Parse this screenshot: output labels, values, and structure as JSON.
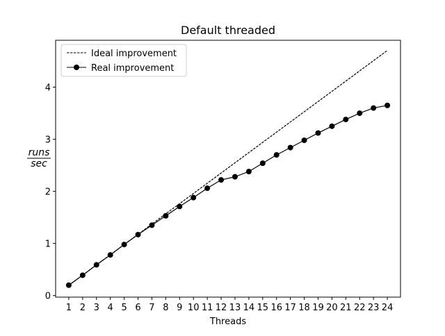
{
  "chart_data": {
    "type": "line",
    "title": "Default threaded",
    "xlabel": "Threads",
    "ylabel": {
      "numerator": "runs",
      "denominator": "sec"
    },
    "x": [
      1,
      2,
      3,
      4,
      5,
      6,
      7,
      8,
      9,
      10,
      11,
      12,
      13,
      14,
      15,
      16,
      17,
      18,
      19,
      20,
      21,
      22,
      23,
      24
    ],
    "xlim": [
      0.05,
      24.95
    ],
    "ylim": [
      -0.03,
      4.9
    ],
    "yticks": [
      0,
      1,
      2,
      3,
      4
    ],
    "grid": false,
    "legend_position": "upper-left",
    "series": [
      {
        "name": "Ideal improvement",
        "style": "dashed",
        "color": "#000000",
        "values": [
          0.196,
          0.392,
          0.588,
          0.784,
          0.98,
          1.176,
          1.372,
          1.568,
          1.764,
          1.96,
          2.156,
          2.352,
          2.548,
          2.744,
          2.94,
          3.136,
          3.332,
          3.528,
          3.724,
          3.92,
          4.116,
          4.312,
          4.508,
          4.704
        ]
      },
      {
        "name": "Real improvement",
        "style": "solid-marker",
        "color": "#000000",
        "values": [
          0.2,
          0.39,
          0.59,
          0.78,
          0.98,
          1.17,
          1.35,
          1.53,
          1.71,
          1.88,
          2.06,
          2.22,
          2.28,
          2.38,
          2.54,
          2.7,
          2.84,
          2.98,
          3.12,
          3.25,
          3.38,
          3.5,
          3.6,
          3.65
        ]
      }
    ]
  }
}
